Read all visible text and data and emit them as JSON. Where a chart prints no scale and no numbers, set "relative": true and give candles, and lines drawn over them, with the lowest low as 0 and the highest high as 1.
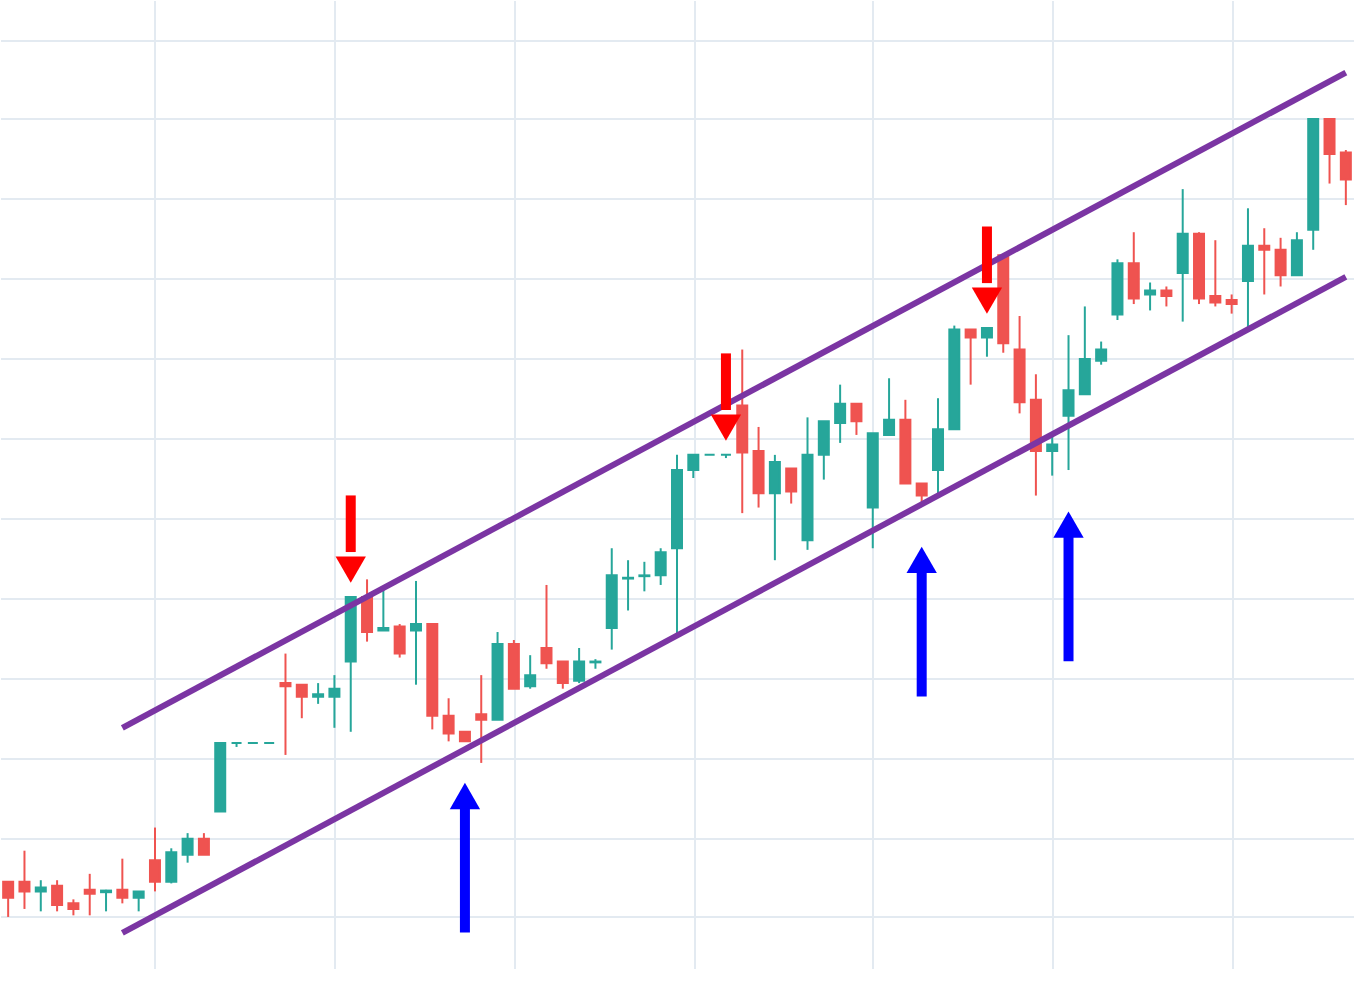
{
  "chart_data": {
    "type": "candlestick",
    "relative": true,
    "grid": true,
    "categories": [
      null,
      null,
      null,
      null,
      null,
      null,
      null,
      null,
      null,
      null,
      null,
      null,
      null,
      null,
      null,
      null,
      null,
      null,
      null,
      null,
      null,
      null,
      null,
      null,
      null,
      null,
      null,
      null,
      null,
      null,
      null,
      null,
      null,
      null,
      null,
      null,
      null,
      null,
      null,
      null,
      null,
      null,
      null,
      null,
      null,
      null,
      null,
      null,
      null,
      null,
      null,
      null,
      null,
      null,
      null,
      null,
      null,
      null,
      null,
      null,
      null,
      null,
      null,
      null,
      null,
      null,
      null,
      null,
      null,
      null,
      null,
      null,
      null,
      null,
      null,
      null,
      null,
      null,
      null,
      null,
      null,
      null,
      null
    ],
    "ohlc": [
      [
        0.044,
        0.044,
        0,
        0.024
      ],
      [
        0.044,
        0.083,
        0.01,
        0.032
      ],
      [
        0.032,
        0.046,
        0.007,
        0.037
      ],
      [
        0.039,
        0.046,
        0.007,
        0.015
      ],
      [
        0.017,
        0.022,
        0.002,
        0.01
      ],
      [
        0.034,
        0.054,
        0.002,
        0.029
      ],
      [
        0.031,
        0.034,
        0.007,
        0.033
      ],
      [
        0.034,
        0.073,
        0.017,
        0.024
      ],
      [
        0.024,
        0.032,
        0.007,
        0.032
      ],
      [
        0.071,
        0.112,
        0.032,
        0.044
      ],
      [
        0.044,
        0.086,
        0.042,
        0.081
      ],
      [
        0.078,
        0.105,
        0.068,
        0.098
      ],
      [
        0.098,
        0.105,
        0.078,
        0.078
      ],
      [
        0.132,
        0.218,
        0.132,
        0.218
      ],
      [
        0.218,
        0.218,
        0.213,
        0.218
      ],
      [
        0.218,
        0.218,
        0.218,
        0.218
      ],
      [
        0.218,
        0.218,
        0.218,
        0.218
      ],
      [
        0.293,
        0.33,
        0.203,
        0.289
      ],
      [
        0.291,
        0.291,
        0.249,
        0.276
      ],
      [
        0.276,
        0.293,
        0.267,
        0.279
      ],
      [
        0.276,
        0.303,
        0.237,
        0.286
      ],
      [
        0.32,
        0.401,
        0.232,
        0.401
      ],
      [
        0.401,
        0.423,
        0.345,
        0.357
      ],
      [
        0.359,
        0.411,
        0.359,
        0.362
      ],
      [
        0.364,
        0.367,
        0.325,
        0.33
      ],
      [
        0.359,
        0.421,
        0.291,
        0.367
      ],
      [
        0.367,
        0.367,
        0.235,
        0.252
      ],
      [
        0.252,
        0.274,
        0.22,
        0.23
      ],
      [
        0.232,
        0.232,
        0.22,
        0.22
      ],
      [
        0.254,
        0.303,
        0.193,
        0.247
      ],
      [
        0.247,
        0.357,
        0.247,
        0.342
      ],
      [
        0.342,
        0.347,
        0.286,
        0.286
      ],
      [
        0.289,
        0.328,
        0.286,
        0.303
      ],
      [
        0.337,
        0.416,
        0.311,
        0.318
      ],
      [
        0.32,
        0.32,
        0.286,
        0.293
      ],
      [
        0.296,
        0.337,
        0.293,
        0.32
      ],
      [
        0.319,
        0.323,
        0.311,
        0.32
      ],
      [
        0.362,
        0.462,
        0.335,
        0.428
      ],
      [
        0.424,
        0.447,
        0.384,
        0.425
      ],
      [
        0.427,
        0.445,
        0.408,
        0.428
      ],
      [
        0.428,
        0.462,
        0.416,
        0.457
      ],
      [
        0.462,
        0.579,
        0.355,
        0.56
      ],
      [
        0.56,
        0.579,
        0.55,
        0.579
      ],
      [
        0.579,
        0.579,
        0.579,
        0.579
      ],
      [
        0.579,
        0.579,
        0.575,
        0.579
      ],
      [
        0.641,
        0.711,
        0.506,
        0.582
      ],
      [
        0.584,
        0.614,
        0.513,
        0.531
      ],
      [
        0.531,
        0.579,
        0.447,
        0.57
      ],
      [
        0.562,
        0.562,
        0.518,
        0.533
      ],
      [
        0.472,
        0.626,
        0.46,
        0.579
      ],
      [
        0.579,
        0.621,
        0.548,
        0.621
      ],
      [
        0.619,
        0.667,
        0.594,
        0.643
      ],
      [
        0.643,
        0.643,
        0.604,
        0.621
      ],
      [
        0.513,
        0.606,
        0.462,
        0.606
      ],
      [
        0.604,
        0.675,
        0.604,
        0.623
      ],
      [
        0.623,
        0.648,
        0.543,
        0.543
      ],
      [
        0.543,
        0.543,
        0.516,
        0.528
      ],
      [
        0.56,
        0.65,
        0.531,
        0.611
      ],
      [
        0.611,
        0.741,
        0.611,
        0.736
      ],
      [
        0.736,
        0.736,
        0.667,
        0.726
      ],
      [
        0.726,
        0.738,
        0.702,
        0.738
      ],
      [
        0.829,
        0.829,
        0.707,
        0.719
      ],
      [
        0.711,
        0.753,
        0.631,
        0.645
      ],
      [
        0.648,
        0.68,
        0.528,
        0.584
      ],
      [
        0.584,
        0.604,
        0.553,
        0.592
      ],
      [
        0.628,
        0.729,
        0.56,
        0.66
      ],
      [
        0.655,
        0.765,
        0.655,
        0.699
      ],
      [
        0.697,
        0.721,
        0.692,
        0.711
      ],
      [
        0.755,
        0.824,
        0.748,
        0.819
      ],
      [
        0.819,
        0.858,
        0.768,
        0.775
      ],
      [
        0.78,
        0.795,
        0.76,
        0.785
      ],
      [
        0.785,
        0.79,
        0.765,
        0.778
      ],
      [
        0.807,
        0.912,
        0.746,
        0.856
      ],
      [
        0.856,
        0.858,
        0.768,
        0.775
      ],
      [
        0.778,
        0.848,
        0.765,
        0.77
      ],
      [
        0.773,
        0.78,
        0.756,
        0.768
      ],
      [
        0.797,
        0.888,
        0.734,
        0.841
      ],
      [
        0.841,
        0.863,
        0.78,
        0.836
      ],
      [
        0.836,
        0.851,
        0.79,
        0.804
      ],
      [
        0.804,
        0.858,
        0.804,
        0.848
      ],
      [
        0.861,
        1,
        0.836,
        1
      ],
      [
        1,
        1,
        0.919,
        0.956
      ],
      [
        0.958,
        0.961,
        0.892,
        0.924
      ]
    ],
    "colors": [
      "#ef5350",
      "#ef5350",
      "#26a69a",
      "#ef5350",
      "#ef5350",
      "#ef5350",
      "#26a69a",
      "#ef5350",
      "#26a69a",
      "#ef5350",
      "#26a69a",
      "#26a69a",
      "#ef5350",
      "#26a69a",
      "#26a69a",
      "#26a69a",
      "#26a69a",
      "#ef5350",
      "#ef5350",
      "#26a69a",
      "#26a69a",
      "#26a69a",
      "#ef5350",
      "#26a69a",
      "#ef5350",
      "#26a69a",
      "#ef5350",
      "#ef5350",
      "#ef5350",
      "#ef5350",
      "#26a69a",
      "#ef5350",
      "#26a69a",
      "#ef5350",
      "#ef5350",
      "#26a69a",
      "#26a69a",
      "#26a69a",
      "#26a69a",
      "#26a69a",
      "#26a69a",
      "#26a69a",
      "#26a69a",
      "#26a69a",
      "#26a69a",
      "#ef5350",
      "#ef5350",
      "#26a69a",
      "#ef5350",
      "#26a69a",
      "#26a69a",
      "#26a69a",
      "#ef5350",
      "#26a69a",
      "#26a69a",
      "#ef5350",
      "#ef5350",
      "#26a69a",
      "#26a69a",
      "#ef5350",
      "#26a69a",
      "#ef5350",
      "#ef5350",
      "#ef5350",
      "#26a69a",
      "#26a69a",
      "#26a69a",
      "#26a69a",
      "#26a69a",
      "#ef5350",
      "#26a69a",
      "#ef5350",
      "#26a69a",
      "#ef5350",
      "#ef5350",
      "#ef5350",
      "#26a69a",
      "#ef5350",
      "#ef5350",
      "#26a69a",
      "#26a69a",
      "#ef5350",
      "#ef5350"
    ],
    "series": [
      {
        "type": "line",
        "color": "#7b35a3",
        "values": [
          null,
          null,
          null,
          null,
          null,
          null,
          null,
          0.237,
          null,
          null,
          null,
          null,
          null,
          null,
          null,
          null,
          null,
          null,
          null,
          null,
          null,
          null,
          null,
          null,
          null,
          null,
          null,
          null,
          null,
          null,
          null,
          null,
          null,
          null,
          null,
          null,
          null,
          null,
          null,
          null,
          null,
          null,
          null,
          null,
          null,
          null,
          null,
          null,
          null,
          null,
          null,
          null,
          null,
          null,
          null,
          null,
          null,
          null,
          null,
          null,
          null,
          null,
          null,
          null,
          null,
          null,
          null,
          null,
          null,
          null,
          null,
          null,
          null,
          null,
          null,
          null,
          null,
          null,
          null,
          null,
          null,
          null,
          1.058
        ]
      },
      {
        "type": "line",
        "color": "#7b35a3",
        "values": [
          null,
          null,
          null,
          null,
          null,
          null,
          null,
          -0.02,
          null,
          null,
          null,
          null,
          null,
          null,
          null,
          null,
          null,
          null,
          null,
          null,
          null,
          null,
          null,
          null,
          null,
          null,
          null,
          null,
          null,
          null,
          null,
          null,
          null,
          null,
          null,
          null,
          null,
          null,
          null,
          null,
          null,
          null,
          null,
          null,
          null,
          null,
          null,
          null,
          null,
          null,
          null,
          null,
          null,
          null,
          null,
          null,
          null,
          null,
          null,
          null,
          null,
          null,
          null,
          null,
          null,
          null,
          null,
          null,
          null,
          null,
          null,
          null,
          null,
          null,
          null,
          null,
          null,
          null,
          null,
          null,
          null,
          null,
          0.802
        ]
      }
    ]
  }
}
